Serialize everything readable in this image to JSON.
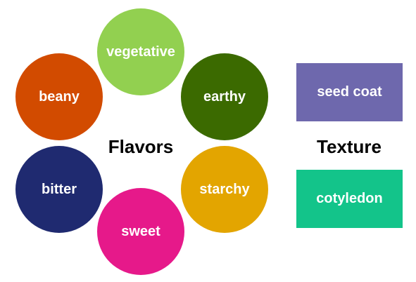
{
  "flavors": {
    "heading": "Flavors",
    "items": [
      {
        "label": "vegetative",
        "color": "#92d050"
      },
      {
        "label": "beany",
        "color": "#d24b00"
      },
      {
        "label": "earthy",
        "color": "#3b6a00"
      },
      {
        "label": "bitter",
        "color": "#1f2a70"
      },
      {
        "label": "starchy",
        "color": "#e3a500"
      },
      {
        "label": "sweet",
        "color": "#e6198a"
      }
    ]
  },
  "texture": {
    "heading": "Texture",
    "items": [
      {
        "label": "seed coat",
        "color": "#6e68ad"
      },
      {
        "label": "cotyledon",
        "color": "#13c48a"
      }
    ]
  }
}
